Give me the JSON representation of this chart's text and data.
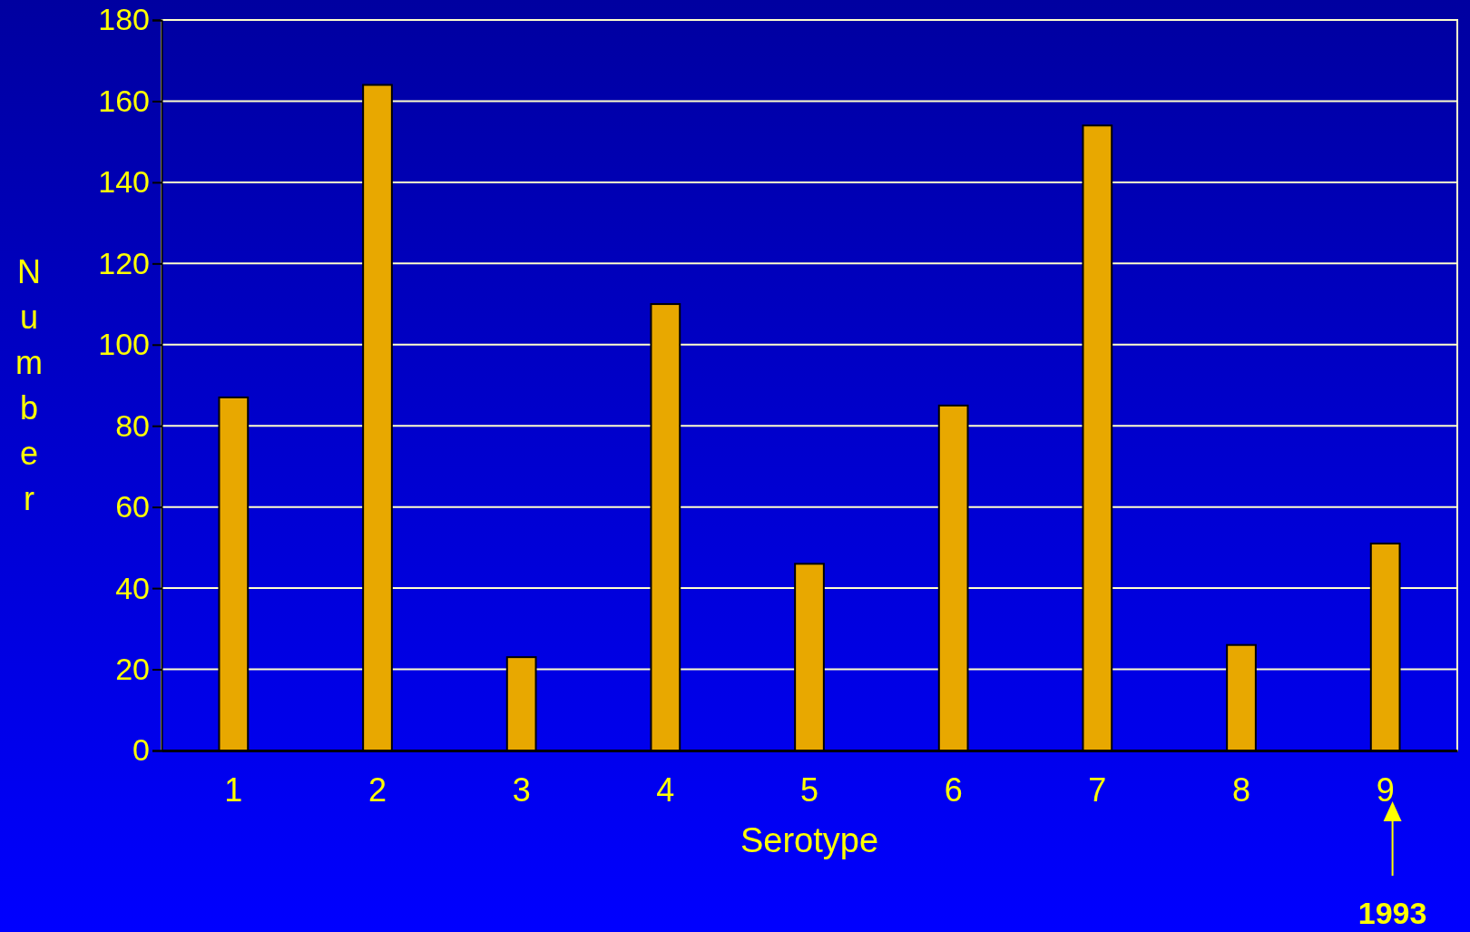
{
  "chart_data": {
    "type": "bar",
    "xlabel": "Serotype",
    "ylabel": "Number",
    "categories": [
      "1",
      "2",
      "3",
      "4",
      "5",
      "6",
      "7",
      "8",
      "9"
    ],
    "values": [
      87,
      164,
      23,
      110,
      46,
      85,
      154,
      26,
      51
    ],
    "color": "#e8a800",
    "ylim": [
      0,
      180
    ],
    "yticks": [
      0,
      20,
      40,
      60,
      80,
      100,
      120,
      140,
      160,
      180
    ],
    "grid": "y",
    "annotations": [
      "1993"
    ]
  }
}
